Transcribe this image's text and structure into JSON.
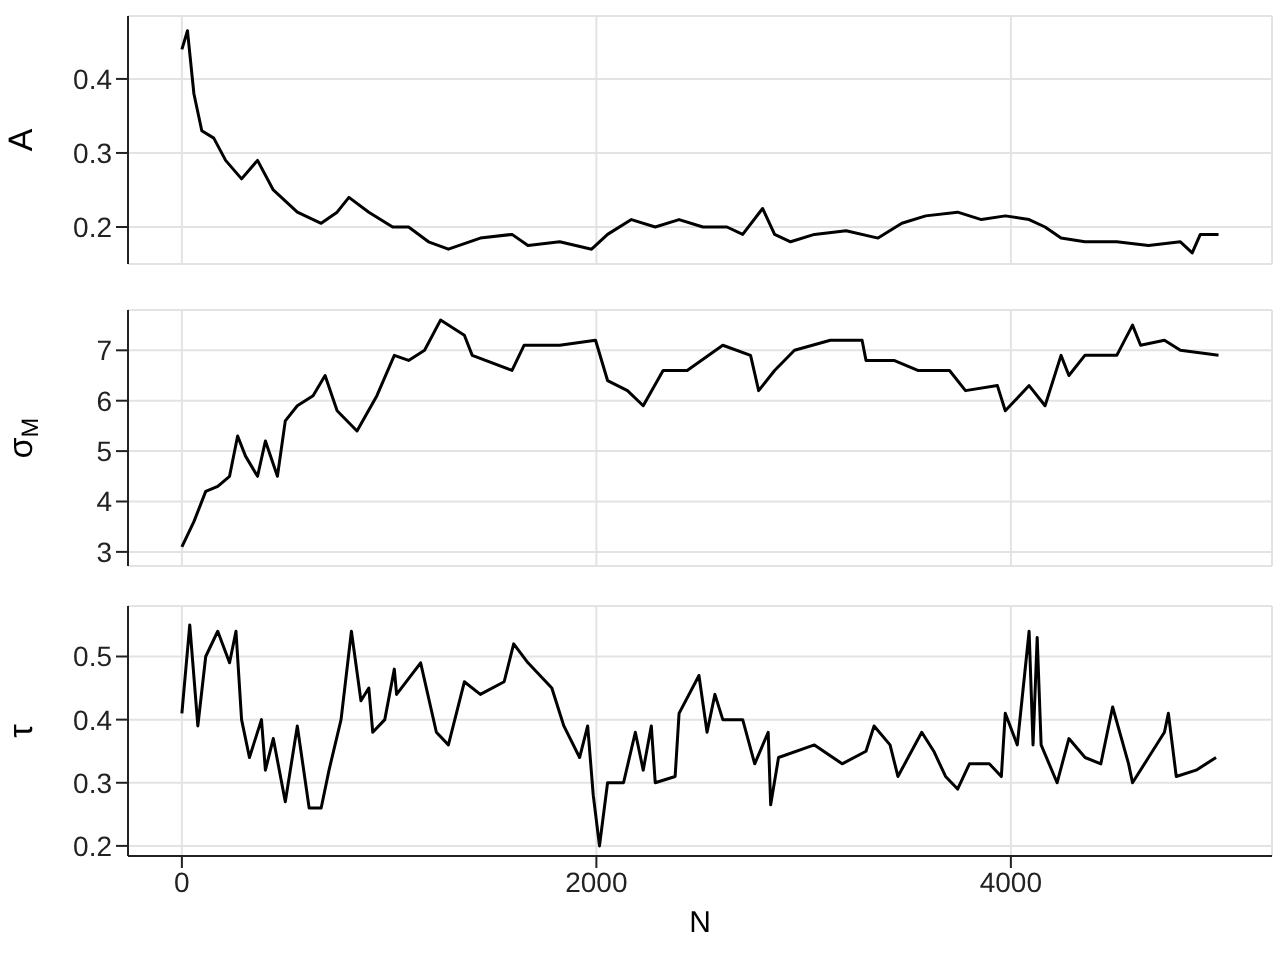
{
  "chart_data": [
    {
      "type": "line",
      "ylabel": "A",
      "xlim": [
        -260,
        5260
      ],
      "xticks": [
        0,
        2000,
        4000
      ],
      "ylim": [
        0.15,
        0.485
      ],
      "yticks": [
        0.2,
        0.3,
        0.4
      ],
      "grid": true,
      "tick_labels": "y",
      "series": [
        {
          "color": "#000000",
          "x": [
            0,
            27,
            58,
            96,
            154,
            211,
            288,
            365,
            441,
            557,
            672,
            749,
            806,
            902,
            1017,
            1094,
            1190,
            1286,
            1440,
            1593,
            1670,
            1823,
            1977,
            2054,
            2169,
            2284,
            2399,
            2514,
            2630,
            2706,
            2802,
            2860,
            2937,
            3052,
            3205,
            3359,
            3474,
            3589,
            3743,
            3858,
            3973,
            4088,
            4165,
            4242,
            4357,
            4511,
            4664,
            4818,
            4875,
            4914,
            5002
          ],
          "values": [
            0.44,
            0.465,
            0.38,
            0.33,
            0.32,
            0.29,
            0.265,
            0.29,
            0.25,
            0.22,
            0.205,
            0.22,
            0.24,
            0.22,
            0.2,
            0.2,
            0.18,
            0.17,
            0.185,
            0.19,
            0.175,
            0.18,
            0.17,
            0.19,
            0.21,
            0.2,
            0.21,
            0.2,
            0.2,
            0.19,
            0.225,
            0.19,
            0.18,
            0.19,
            0.195,
            0.185,
            0.205,
            0.215,
            0.22,
            0.21,
            0.215,
            0.21,
            0.2,
            0.185,
            0.18,
            0.18,
            0.175,
            0.18,
            0.165,
            0.19,
            0.19
          ]
        }
      ]
    },
    {
      "type": "line",
      "ylabel": "σ$_{M}$",
      "xlim": [
        -260,
        5260
      ],
      "xticks": [
        0,
        2000,
        4000
      ],
      "ylim": [
        2.72,
        7.8
      ],
      "yticks": [
        3,
        4,
        5,
        6,
        7
      ],
      "grid": true,
      "tick_labels": "y",
      "series": [
        {
          "color": "#000000",
          "x": [
            0,
            58,
            115,
            173,
            230,
            269,
            307,
            365,
            403,
            461,
            499,
            557,
            633,
            691,
            749,
            845,
            941,
            1025,
            1094,
            1171,
            1248,
            1363,
            1401,
            1593,
            1651,
            1823,
            1996,
            2054,
            2150,
            2226,
            2322,
            2438,
            2610,
            2744,
            2783,
            2860,
            2956,
            3129,
            3282,
            3301,
            3436,
            3551,
            3704,
            3781,
            3935,
            3973,
            4088,
            4165,
            4242,
            4280,
            4357,
            4511,
            4587,
            4626,
            4741,
            4818,
            5002
          ],
          "values": [
            3.1,
            3.6,
            4.2,
            4.3,
            4.5,
            5.3,
            4.9,
            4.5,
            5.2,
            4.5,
            5.6,
            5.9,
            6.1,
            6.5,
            5.8,
            5.4,
            6.1,
            6.9,
            6.8,
            7.0,
            7.6,
            7.3,
            6.9,
            6.6,
            7.1,
            7.1,
            7.2,
            6.4,
            6.2,
            5.9,
            6.6,
            6.6,
            7.1,
            6.9,
            6.2,
            6.6,
            7.0,
            7.2,
            7.2,
            6.8,
            6.8,
            6.6,
            6.6,
            6.2,
            6.3,
            5.8,
            6.3,
            5.9,
            6.9,
            6.5,
            6.9,
            6.9,
            7.5,
            7.1,
            7.2,
            7.0,
            6.9
          ]
        }
      ]
    },
    {
      "type": "line",
      "xlabel": "N",
      "ylabel": "τ",
      "xlim": [
        -260,
        5260
      ],
      "xticks": [
        0,
        2000,
        4000
      ],
      "ylim": [
        0.184,
        0.58
      ],
      "yticks": [
        0.2,
        0.3,
        0.4,
        0.5
      ],
      "grid": true,
      "series": [
        {
          "color": "#000000",
          "x": [
            0,
            38,
            77,
            115,
            173,
            230,
            261,
            288,
            326,
            384,
            403,
            441,
            499,
            557,
            614,
            672,
            710,
            768,
            818,
            864,
            902,
            921,
            979,
            1025,
            1036,
            1152,
            1228,
            1286,
            1363,
            1440,
            1555,
            1601,
            1670,
            1785,
            1843,
            1919,
            1958,
            1985,
            2015,
            2054,
            2131,
            2188,
            2226,
            2265,
            2284,
            2380,
            2399,
            2495,
            2534,
            2572,
            2610,
            2706,
            2764,
            2829,
            2841,
            2879,
            3052,
            3186,
            3301,
            3340,
            3417,
            3455,
            3570,
            3628,
            3685,
            3743,
            3800,
            3896,
            3954,
            3973,
            4031,
            4088,
            4107,
            4127,
            4146,
            4223,
            4280,
            4358,
            4434,
            4491,
            4568,
            4587,
            4664,
            4741,
            4760,
            4798,
            4894,
            4990
          ],
          "values": [
            0.41,
            0.55,
            0.39,
            0.5,
            0.54,
            0.49,
            0.54,
            0.4,
            0.34,
            0.4,
            0.32,
            0.37,
            0.27,
            0.39,
            0.26,
            0.26,
            0.32,
            0.4,
            0.54,
            0.43,
            0.45,
            0.38,
            0.4,
            0.48,
            0.44,
            0.49,
            0.38,
            0.36,
            0.46,
            0.44,
            0.46,
            0.52,
            0.49,
            0.45,
            0.39,
            0.34,
            0.39,
            0.28,
            0.2,
            0.3,
            0.3,
            0.38,
            0.32,
            0.39,
            0.3,
            0.31,
            0.41,
            0.47,
            0.38,
            0.44,
            0.4,
            0.4,
            0.33,
            0.38,
            0.265,
            0.34,
            0.36,
            0.33,
            0.35,
            0.39,
            0.36,
            0.31,
            0.38,
            0.35,
            0.31,
            0.29,
            0.33,
            0.33,
            0.31,
            0.41,
            0.36,
            0.54,
            0.36,
            0.53,
            0.36,
            0.3,
            0.37,
            0.34,
            0.33,
            0.42,
            0.33,
            0.3,
            0.34,
            0.38,
            0.41,
            0.31,
            0.32,
            0.34
          ]
        }
      ]
    }
  ]
}
